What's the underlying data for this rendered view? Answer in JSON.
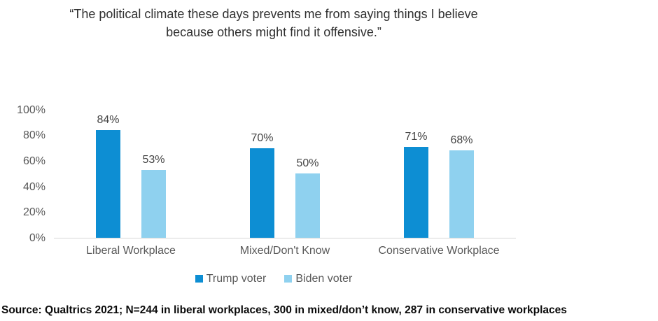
{
  "title": "“The political climate these days prevents me from saying things I believe because others might find it offensive.”",
  "source": "Source: Qualtrics 2021; N=244 in liberal workplaces, 300 in mixed/don’t know, 287 in conservative workplaces",
  "colors": {
    "trump_blue": "#0d8ed3",
    "biden_blue": "#8fd1ef",
    "axis_line": "#d6d6d6",
    "tick_text": "#595959",
    "value_text": "#444444"
  },
  "chart_data": {
    "type": "bar",
    "categories": [
      "Liberal Workplace",
      "Mixed/Don't Know",
      "Conservative Workplace"
    ],
    "series": [
      {
        "name": "Trump voter",
        "color": "#0d8ed3",
        "values": [
          84,
          70,
          71
        ]
      },
      {
        "name": "Biden voter",
        "color": "#8fd1ef",
        "values": [
          53,
          50,
          68
        ]
      }
    ],
    "data_labels": true,
    "value_suffix": "%",
    "ylim": [
      0,
      100
    ],
    "yticks": [
      0,
      20,
      40,
      60,
      80,
      100
    ],
    "ytick_suffix": "%",
    "grid": false,
    "legend_position": "bottom"
  }
}
